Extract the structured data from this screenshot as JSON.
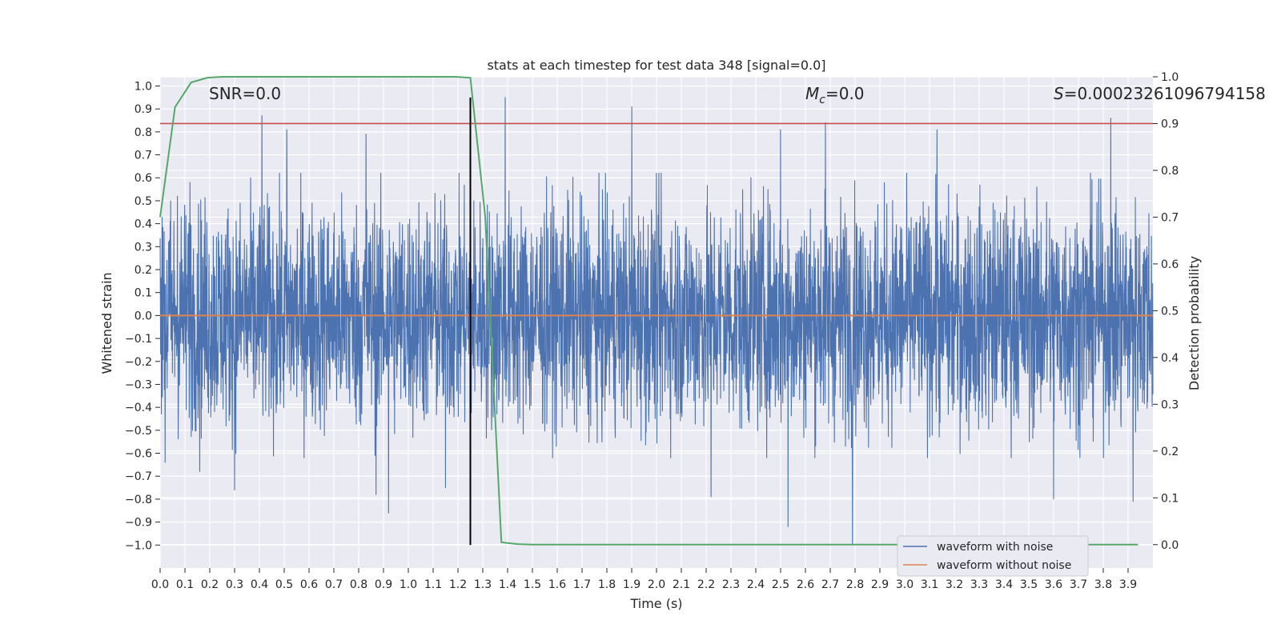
{
  "chart_data": {
    "type": "line",
    "title": "stats at each timestep for test data 348 [signal=0.0]",
    "xlabel": "Time (s)",
    "ylabel": "Whitened strain",
    "y2label": "Detection probability",
    "xlim": [
      0.0,
      4.0
    ],
    "ylim": [
      -1.1,
      1.04
    ],
    "y2lim": [
      -0.05,
      1.0
    ],
    "grid": true,
    "x_ticks": [
      "0.0",
      "0.1",
      "0.2",
      "0.3",
      "0.4",
      "0.5",
      "0.6",
      "0.7",
      "0.8",
      "0.9",
      "1.0",
      "1.1",
      "1.2",
      "1.3",
      "1.4",
      "1.5",
      "1.6",
      "1.7",
      "1.8",
      "1.9",
      "2.0",
      "2.1",
      "2.2",
      "2.3",
      "2.4",
      "2.5",
      "2.6",
      "2.7",
      "2.8",
      "2.9",
      "3.0",
      "3.1",
      "3.2",
      "3.3",
      "3.4",
      "3.5",
      "3.6",
      "3.7",
      "3.8",
      "3.9"
    ],
    "y_ticks": [
      "1.0",
      "0.9",
      "0.8",
      "0.7",
      "0.6",
      "0.5",
      "0.4",
      "0.3",
      "0.2",
      "0.1",
      "0.0",
      "-0.1",
      "-0.2",
      "-0.3",
      "-0.4",
      "-0.5",
      "-0.6",
      "-0.7",
      "-0.8",
      "-0.9",
      "-1.0"
    ],
    "y2_ticks": [
      "1.0",
      "0.9",
      "0.8",
      "0.7",
      "0.6",
      "0.5",
      "0.4",
      "0.3",
      "0.2",
      "0.1",
      "0.0"
    ],
    "annotations": {
      "snr": "SNR=0.0",
      "mc_label": "M",
      "mc_sub": "c",
      "mc_value": "=0.0",
      "s_label": "S",
      "s_value": "=0.00023261096794158"
    },
    "series": [
      {
        "name": "waveform with noise",
        "axis": "left",
        "color": "#4c72b0",
        "note": "whitened noisy strain, ~4096 samples, amplitude mostly within [-0.5, 0.5] with spikes up to 0.95 and down to -1.0",
        "spikes": [
          {
            "t": 0.02,
            "v": -0.64
          },
          {
            "t": 0.07,
            "v": 0.52
          },
          {
            "t": 0.12,
            "v": 0.58
          },
          {
            "t": 0.16,
            "v": -0.68
          },
          {
            "t": 0.3,
            "v": -0.76
          },
          {
            "t": 0.41,
            "v": 0.87
          },
          {
            "t": 0.51,
            "v": 0.81
          },
          {
            "t": 0.83,
            "v": 0.79
          },
          {
            "t": 0.87,
            "v": -0.78
          },
          {
            "t": 0.92,
            "v": -0.86
          },
          {
            "t": 1.15,
            "v": -0.75
          },
          {
            "t": 1.39,
            "v": 0.95
          },
          {
            "t": 1.9,
            "v": 0.91
          },
          {
            "t": 2.22,
            "v": -0.79
          },
          {
            "t": 2.5,
            "v": 0.81
          },
          {
            "t": 2.53,
            "v": -0.92
          },
          {
            "t": 2.68,
            "v": 0.84
          },
          {
            "t": 2.79,
            "v": -1.0
          },
          {
            "t": 3.13,
            "v": 0.81
          },
          {
            "t": 3.6,
            "v": -0.8
          },
          {
            "t": 3.83,
            "v": 0.86
          },
          {
            "t": 3.92,
            "v": -0.81
          }
        ]
      },
      {
        "name": "waveform without noise",
        "axis": "left",
        "color": "#dd8452",
        "x": [
          0.0,
          4.0
        ],
        "y": [
          0.0,
          0.0
        ]
      },
      {
        "name": "detection probability",
        "axis": "right",
        "color": "#55a868",
        "x": [
          0.0,
          0.06,
          0.125,
          0.19,
          0.25,
          0.31,
          0.375,
          0.44,
          0.5,
          0.56,
          0.625,
          0.69,
          0.75,
          0.81,
          0.875,
          0.94,
          1.0,
          1.06,
          1.125,
          1.19,
          1.25,
          1.31,
          1.375,
          1.44,
          1.5,
          1.56,
          1.625,
          1.69,
          1.75,
          1.81,
          1.875,
          1.94,
          2.0,
          2.06,
          2.125,
          2.19,
          2.25,
          2.31,
          2.375,
          2.44,
          2.5,
          2.56,
          2.625,
          2.69,
          2.75,
          2.81,
          2.875,
          2.94,
          3.0,
          3.06,
          3.125,
          3.19,
          3.25,
          3.31,
          3.375,
          3.44,
          3.5,
          3.56,
          3.625,
          3.69,
          3.75,
          3.81,
          3.875,
          3.94
        ],
        "y": [
          0.7,
          0.935,
          0.988,
          0.998,
          1.0,
          1.0,
          1.0,
          1.0,
          1.0,
          1.0,
          1.0,
          1.0,
          1.0,
          1.0,
          1.0,
          1.0,
          1.0,
          1.0,
          1.0,
          1.0,
          0.998,
          0.7,
          0.005,
          0.001,
          0.0,
          0.0,
          0.0,
          0.0,
          0.0,
          0.0,
          0.0,
          0.0,
          0.0,
          0.0,
          0.0,
          0.0,
          0.0,
          0.0,
          0.0,
          0.0,
          0.0,
          0.0,
          0.0,
          0.0,
          0.0,
          0.0,
          0.0,
          0.0,
          0.0,
          0.0,
          0.0,
          0.0,
          0.0,
          0.0,
          0.0,
          0.0,
          0.0,
          0.0,
          0.0,
          0.0,
          0.0,
          0.0,
          0.0,
          0.0
        ]
      },
      {
        "name": "detection threshold",
        "axis": "right",
        "color": "#c44e52",
        "x": [
          0.0,
          4.0
        ],
        "y": [
          0.9,
          0.9
        ]
      },
      {
        "name": "detection time marker",
        "axis": "left",
        "color": "#000000",
        "x": [
          1.25,
          1.25
        ],
        "y": [
          -1.0,
          0.95
        ]
      }
    ],
    "legend": {
      "position": "lower-right",
      "entries": [
        {
          "label": "waveform with noise",
          "color": "#4c72b0"
        },
        {
          "label": "waveform without noise",
          "color": "#dd8452"
        }
      ]
    }
  }
}
